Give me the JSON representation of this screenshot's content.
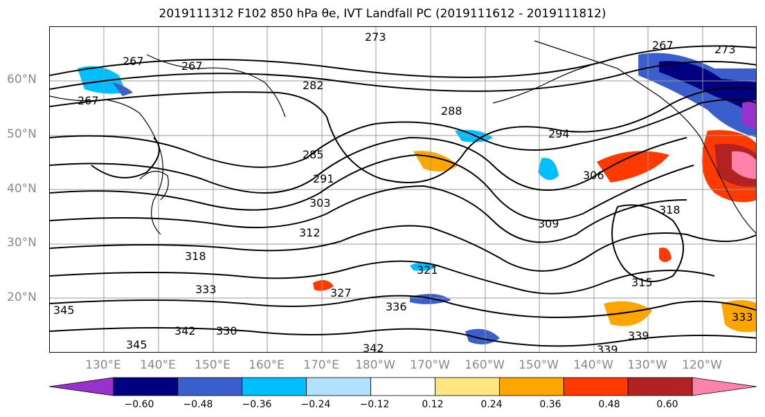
{
  "title": "2019111312 F102 850 hPa θe, IVT Landfall PC (2019111612 - 2019111812)",
  "lat_labels": [
    "60°N",
    "50°N",
    "40°N",
    "30°N",
    "20°N"
  ],
  "lon_labels": [
    "130°E",
    "140°E",
    "150°E",
    "160°E",
    "170°E",
    "180°W",
    "170°W",
    "160°W",
    "150°W",
    "140°W",
    "130°W",
    "120°W"
  ],
  "contour_labels": [
    "267",
    "267",
    "267",
    "273",
    "273",
    "267",
    "282",
    "288",
    "294",
    "285",
    "291",
    "303",
    "312",
    "309",
    "306",
    "318",
    "318",
    "321",
    "327",
    "330",
    "333",
    "336",
    "339",
    "339",
    "342",
    "342",
    "345",
    "315",
    "345",
    "333"
  ],
  "colorbar": {
    "colors": [
      "#9932cc",
      "#000080",
      "#3a5fcd",
      "#00bfff",
      "#b0e2ff",
      "#ffffff",
      "#ffe680",
      "#ffa500",
      "#ff3a00",
      "#b22222",
      "#ff82ab"
    ],
    "ticks": [
      "−0.60",
      "−0.48",
      "−0.36",
      "−0.24",
      "−0.12",
      "0.12",
      "0.24",
      "0.36",
      "0.48",
      "0.60"
    ]
  }
}
